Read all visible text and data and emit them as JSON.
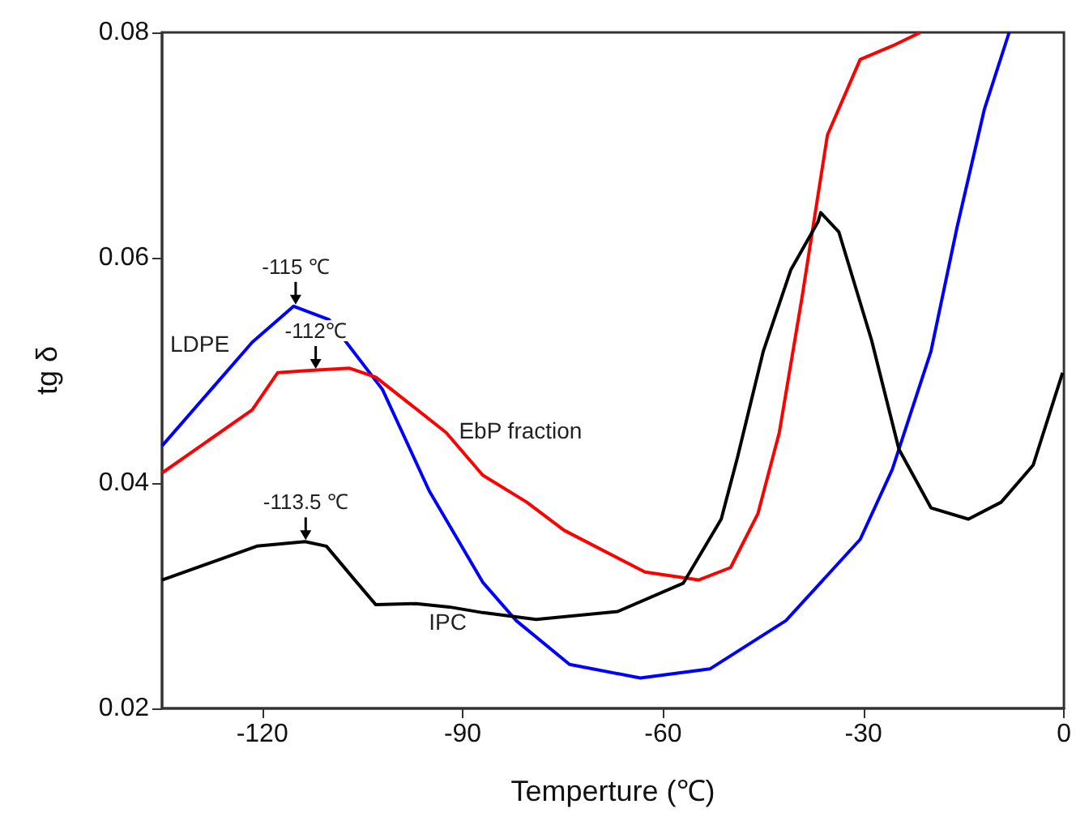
{
  "chart_data": {
    "type": "line",
    "xlabel": "Temperture (℃)",
    "ylabel": "tg δ",
    "xlim": [
      -135,
      0
    ],
    "xticks": [
      -120,
      -90,
      -60,
      -30,
      0
    ],
    "ylim": [
      0.02,
      0.08
    ],
    "yticks": [
      0.02,
      0.04,
      0.06,
      0.08
    ],
    "grid": false,
    "legend": false,
    "marker": "none",
    "line_style": "solid",
    "series": [
      {
        "name": "LDPE",
        "color": "#0000ff",
        "x": [
          -135,
          -121.5,
          -115.3,
          -110,
          -102,
          -95,
          -87,
          -82,
          -74,
          -63.4,
          -53,
          -41.6,
          -30.5,
          -25.7,
          -19.9,
          -16,
          -11.9,
          -8.2
        ],
        "values": [
          0.0433,
          0.0525,
          0.0557,
          0.0545,
          0.0483,
          0.0393,
          0.0312,
          0.0278,
          0.0239,
          0.0227,
          0.0235,
          0.0278,
          0.035,
          0.0412,
          0.0517,
          0.0627,
          0.0732,
          0.08
        ]
      },
      {
        "name": "EbP fraction",
        "color": "#ff0000",
        "x": [
          -135,
          -121.5,
          -117.7,
          -112.8,
          -107,
          -103,
          -92.5,
          -87,
          -80.4,
          -74.8,
          -62.7,
          -54.7,
          -49.9,
          -45.8,
          -42.6,
          -39.2,
          -35.4,
          -30.5,
          -25.7,
          -21.5
        ],
        "values": [
          0.0409,
          0.0465,
          0.0498,
          0.05,
          0.0502,
          0.0494,
          0.0445,
          0.0407,
          0.0383,
          0.0358,
          0.0321,
          0.0314,
          0.0325,
          0.0373,
          0.0445,
          0.0565,
          0.0709,
          0.0776,
          0.0788,
          0.08
        ]
      },
      {
        "name": "IPC",
        "color": "#000000",
        "x": [
          -135,
          -120.8,
          -113.6,
          -110.4,
          -106.3,
          -103,
          -97,
          -92,
          -87,
          -79,
          -66.8,
          -57,
          -51.3,
          -48.9,
          -45,
          -40.9,
          -36.8,
          -36.4,
          -33.7,
          -28.8,
          -24.7,
          -19.9,
          -14.3,
          -9.4,
          -4.6,
          -0.2
        ],
        "values": [
          0.0314,
          0.0344,
          0.0348,
          0.0344,
          0.0315,
          0.0292,
          0.0293,
          0.029,
          0.0285,
          0.0279,
          0.0286,
          0.0311,
          0.0368,
          0.0422,
          0.0517,
          0.0589,
          0.0632,
          0.064,
          0.0623,
          0.0527,
          0.043,
          0.0378,
          0.0368,
          0.0383,
          0.0416,
          0.0498
        ]
      }
    ],
    "annotations": [
      {
        "text": "-115 ℃",
        "x": -115,
        "y": 0.0557
      },
      {
        "text": "-112℃",
        "x": -112,
        "y": 0.05
      },
      {
        "text": "-113.5 ℃",
        "x": -113.5,
        "y": 0.0348
      }
    ]
  }
}
